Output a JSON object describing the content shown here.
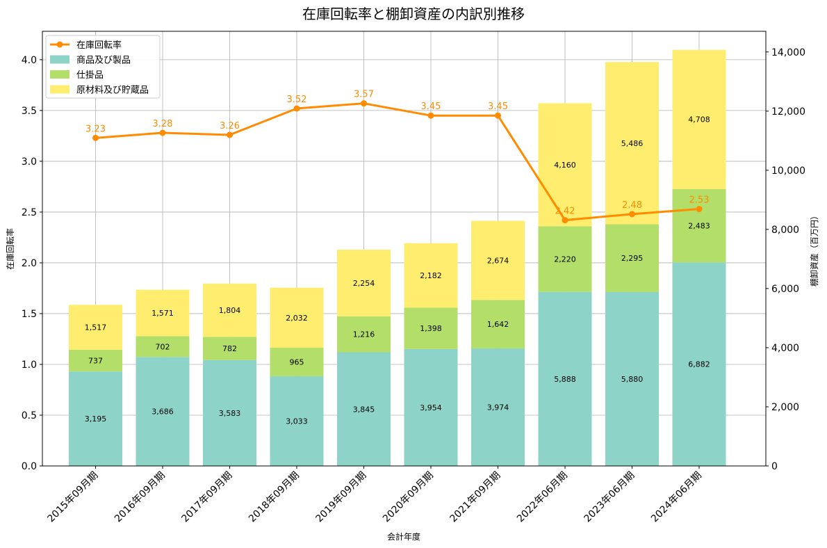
{
  "chart_data": {
    "type": "bar",
    "title": "在庫回転率と棚卸資産の内訳別推移",
    "xlabel": "会計年度",
    "ylabel_left": "在庫回転率",
    "ylabel_right": "棚卸資産（百万円）",
    "categories": [
      "2015年09月期",
      "2016年09月期",
      "2017年09月期",
      "2018年09月期",
      "2019年09月期",
      "2020年09月期",
      "2021年09月期",
      "2022年06月期",
      "2023年06月期",
      "2024年06月期"
    ],
    "ylim_left": [
      0,
      4.28
    ],
    "ylim_right": [
      0,
      14700
    ],
    "left_ticks": [
      "0.0",
      "0.5",
      "1.0",
      "1.5",
      "2.0",
      "2.5",
      "3.0",
      "3.5",
      "4.0"
    ],
    "right_ticks": [
      "0",
      "2,000",
      "4,000",
      "6,000",
      "8,000",
      "10,000",
      "12,000",
      "14,000"
    ],
    "grid": true,
    "legend_position": "top-left",
    "bar_series": [
      {
        "name": "商品及び製品",
        "color": "#8dd3c7",
        "values": [
          3195,
          3686,
          3583,
          3033,
          3845,
          3954,
          3974,
          5888,
          5880,
          6882
        ],
        "labels": [
          "3,195",
          "3,686",
          "3,583",
          "3,033",
          "3,845",
          "3,954",
          "3,974",
          "5,888",
          "5,880",
          "6,882"
        ]
      },
      {
        "name": "仕掛品",
        "color": "#b3de69",
        "values": [
          737,
          702,
          782,
          965,
          1216,
          1398,
          1642,
          2220,
          2295,
          2483
        ],
        "labels": [
          "737",
          "702",
          "782",
          "965",
          "1,216",
          "1,398",
          "1,642",
          "2,220",
          "2,295",
          "2,483"
        ]
      },
      {
        "name": "原材料及び貯蔵品",
        "color": "#ffed6f",
        "values": [
          1517,
          1571,
          1804,
          2032,
          2254,
          2182,
          2674,
          4160,
          5486,
          4708
        ],
        "labels": [
          "1,517",
          "1,571",
          "1,804",
          "2,032",
          "2,254",
          "2,182",
          "2,674",
          "4,160",
          "5,486",
          "4,708"
        ]
      }
    ],
    "line_series": {
      "name": "在庫回転率",
      "color": "#ff8c00",
      "values": [
        3.23,
        3.28,
        3.26,
        3.52,
        3.57,
        3.45,
        3.45,
        2.42,
        2.48,
        2.53
      ],
      "labels": [
        "3.23",
        "3.28",
        "3.26",
        "3.52",
        "3.57",
        "3.45",
        "3.45",
        "2.42",
        "2.48",
        "2.53"
      ]
    }
  }
}
